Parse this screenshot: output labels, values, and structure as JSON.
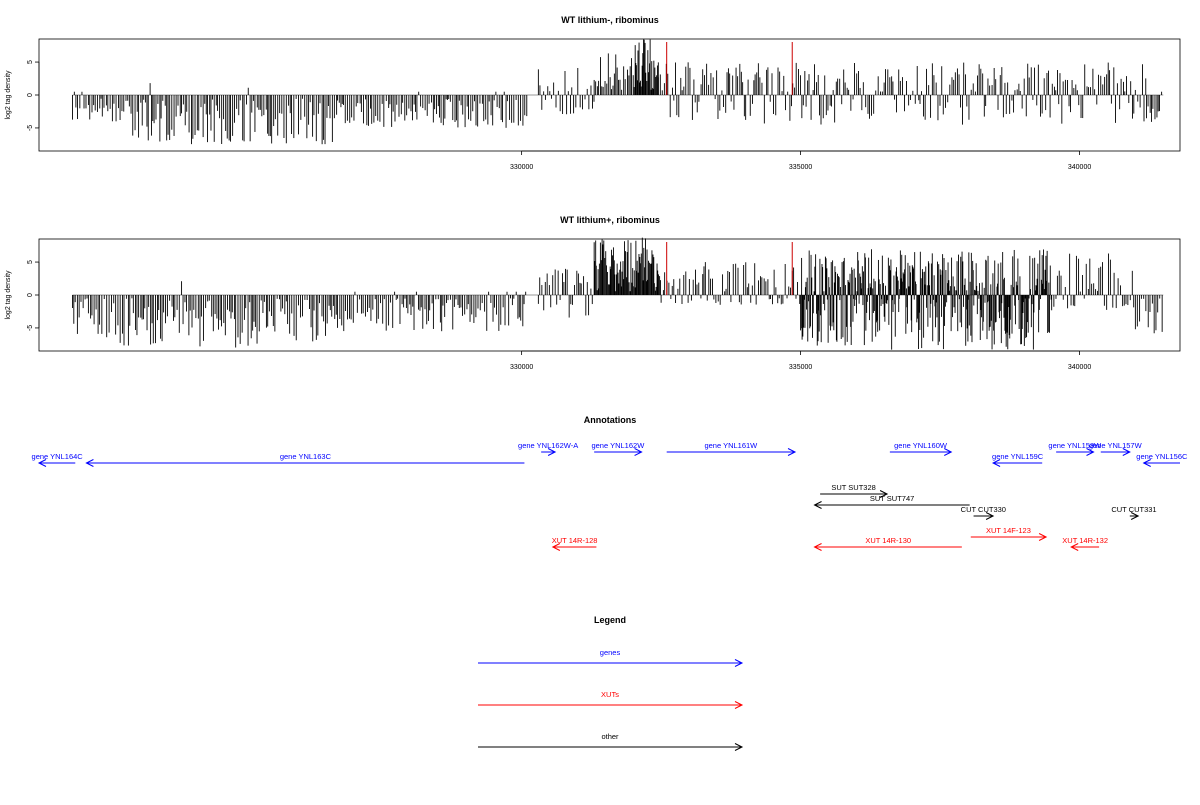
{
  "chart_data": [
    {
      "type": "bar",
      "title": "WT lithium-, ribominus",
      "ylabel": "log2 tag density",
      "xlabel": "",
      "xlim": [
        321350,
        341800
      ],
      "ylim": [
        -8.5,
        8.5
      ],
      "x_ticks": [
        330000,
        335000,
        340000
      ],
      "x_tick_labels": [
        "330000",
        "335000",
        "340000"
      ],
      "y_ticks": [
        -5,
        0,
        5
      ],
      "y_tick_labels": [
        "-5",
        "0",
        "5"
      ],
      "grid": false,
      "series": [
        {
          "values_description": "",
          "segments": [
            {
              "from": 321950,
              "to": 323000,
              "min": -3.5,
              "max": 0,
              "dir": "down"
            },
            {
              "from": 323000,
              "to": 326700,
              "min": -7.0,
              "max": 2.0,
              "dir": "down"
            },
            {
              "from": 326700,
              "to": 330100,
              "min": -4.5,
              "max": 0,
              "dir": "down"
            },
            {
              "from": 330300,
              "to": 331300,
              "min": -2.5,
              "max": 4.0,
              "dir": "mixed"
            },
            {
              "from": 331300,
              "to": 332000,
              "min": 0,
              "max": 6.0,
              "dir": "up"
            },
            {
              "from": 332000,
              "to": 332450,
              "min": 0,
              "max": 8.2,
              "dir": "up"
            },
            {
              "from": 332450,
              "to": 341200,
              "min": -4.0,
              "max": 4.5,
              "dir": "mixed"
            },
            {
              "from": 341200,
              "to": 341500,
              "min": -4.0,
              "max": 0,
              "dir": "down"
            }
          ]
        }
      ],
      "markers": [
        {
          "x": 332600,
          "color": "#cc0000"
        },
        {
          "x": 334850,
          "color": "#cc0000"
        }
      ]
    },
    {
      "type": "bar",
      "title": "WT lithium+, ribominus",
      "ylabel": "log2 tag density",
      "xlabel": "",
      "xlim": [
        321350,
        341800
      ],
      "ylim": [
        -8.5,
        8.5
      ],
      "x_ticks": [
        330000,
        335000,
        340000
      ],
      "x_tick_labels": [
        "330000",
        "335000",
        "340000"
      ],
      "y_ticks": [
        -5,
        0,
        5
      ],
      "y_tick_labels": [
        "-5",
        "0",
        "5"
      ],
      "grid": false,
      "series": [
        {
          "values_description": "",
          "segments": [
            {
              "from": 321950,
              "to": 326700,
              "min": -7.5,
              "max": 2.0,
              "dir": "down"
            },
            {
              "from": 326700,
              "to": 330100,
              "min": -5.0,
              "max": 0,
              "dir": "down"
            },
            {
              "from": 330300,
              "to": 331300,
              "min": -3.0,
              "max": 3.5,
              "dir": "mixed"
            },
            {
              "from": 331300,
              "to": 332500,
              "min": 0,
              "max": 8.3,
              "dir": "up"
            },
            {
              "from": 332500,
              "to": 335000,
              "min": -1.0,
              "max": 4.5,
              "dir": "mixed"
            },
            {
              "from": 335000,
              "to": 339500,
              "min": -7.8,
              "max": 6.5,
              "dir": "dense"
            },
            {
              "from": 339500,
              "to": 341000,
              "min": -2.0,
              "max": 6.0,
              "dir": "mixed"
            },
            {
              "from": 341000,
              "to": 341500,
              "min": -5.5,
              "max": 0,
              "dir": "down"
            }
          ]
        }
      ],
      "markers": [
        {
          "x": 332600,
          "color": "#cc0000"
        },
        {
          "x": 334850,
          "color": "#cc0000"
        }
      ]
    }
  ],
  "panels": [
    {
      "title": "WT lithium-, ribominus",
      "ylabel": "log2 tag density"
    },
    {
      "title": "WT lithium+, ribominus",
      "ylabel": "log2 tag density"
    }
  ],
  "annotations": {
    "title": "Annotations",
    "features": [
      {
        "label": "gene YNL164C",
        "color": "#0000ff",
        "start": 321350,
        "end": 322000,
        "strand": "-",
        "row": 1
      },
      {
        "label": "gene YNL163C",
        "color": "#0000ff",
        "start": 322200,
        "end": 330050,
        "strand": "-",
        "row": 1
      },
      {
        "label": "gene YNL162W-A",
        "color": "#0000ff",
        "start": 330350,
        "end": 330600,
        "strand": "+",
        "row": 0
      },
      {
        "label": "gene YNL162W",
        "color": "#0000ff",
        "start": 331300,
        "end": 332150,
        "strand": "+",
        "row": 0
      },
      {
        "label": "gene YNL161W",
        "color": "#0000ff",
        "start": 332600,
        "end": 334900,
        "strand": "+",
        "row": 0
      },
      {
        "label": "gene YNL160W",
        "color": "#0000ff",
        "start": 336600,
        "end": 337700,
        "strand": "+",
        "row": 0
      },
      {
        "label": "gene YNL159C",
        "color": "#0000ff",
        "start": 338450,
        "end": 339330,
        "strand": "-",
        "row": 1
      },
      {
        "label": "gene YNL158W",
        "color": "#0000ff",
        "start": 339580,
        "end": 340250,
        "strand": "+",
        "row": 0
      },
      {
        "label": "gene YNL157W",
        "color": "#0000ff",
        "start": 340380,
        "end": 340900,
        "strand": "+",
        "row": 0
      },
      {
        "label": "gene YNL156C",
        "color": "#0000ff",
        "start": 341150,
        "end": 341800,
        "strand": "-",
        "row": 1
      },
      {
        "label": "SUT SUT328",
        "color": "#000000",
        "start": 335350,
        "end": 336550,
        "strand": "+",
        "row": 3
      },
      {
        "label": "SUT SUT747",
        "color": "#000000",
        "start": 335250,
        "end": 338030,
        "strand": "-",
        "row": 4
      },
      {
        "label": "CUT CUT330",
        "color": "#000000",
        "start": 338100,
        "end": 338450,
        "strand": "+",
        "row": 5
      },
      {
        "label": "CUT CUT331",
        "color": "#000000",
        "start": 340900,
        "end": 341050,
        "strand": "+",
        "row": 5
      },
      {
        "label": "XUT 14R-128",
        "color": "#ff0000",
        "start": 330560,
        "end": 331340,
        "strand": "-",
        "row": 7
      },
      {
        "label": "XUT 14R-130",
        "color": "#ff0000",
        "start": 335250,
        "end": 337890,
        "strand": "-",
        "row": 7
      },
      {
        "label": "XUT 14F-123",
        "color": "#ff0000",
        "start": 338050,
        "end": 339400,
        "strand": "+",
        "row": 6
      },
      {
        "label": "XUT 14R-132",
        "color": "#ff0000",
        "start": 339850,
        "end": 340350,
        "strand": "-",
        "row": 7
      }
    ]
  },
  "legend": {
    "title": "Legend",
    "items": [
      {
        "label": "genes",
        "color": "#0000ff"
      },
      {
        "label": "XUTs",
        "color": "#ff0000"
      },
      {
        "label": "other",
        "color": "#000000"
      }
    ]
  }
}
